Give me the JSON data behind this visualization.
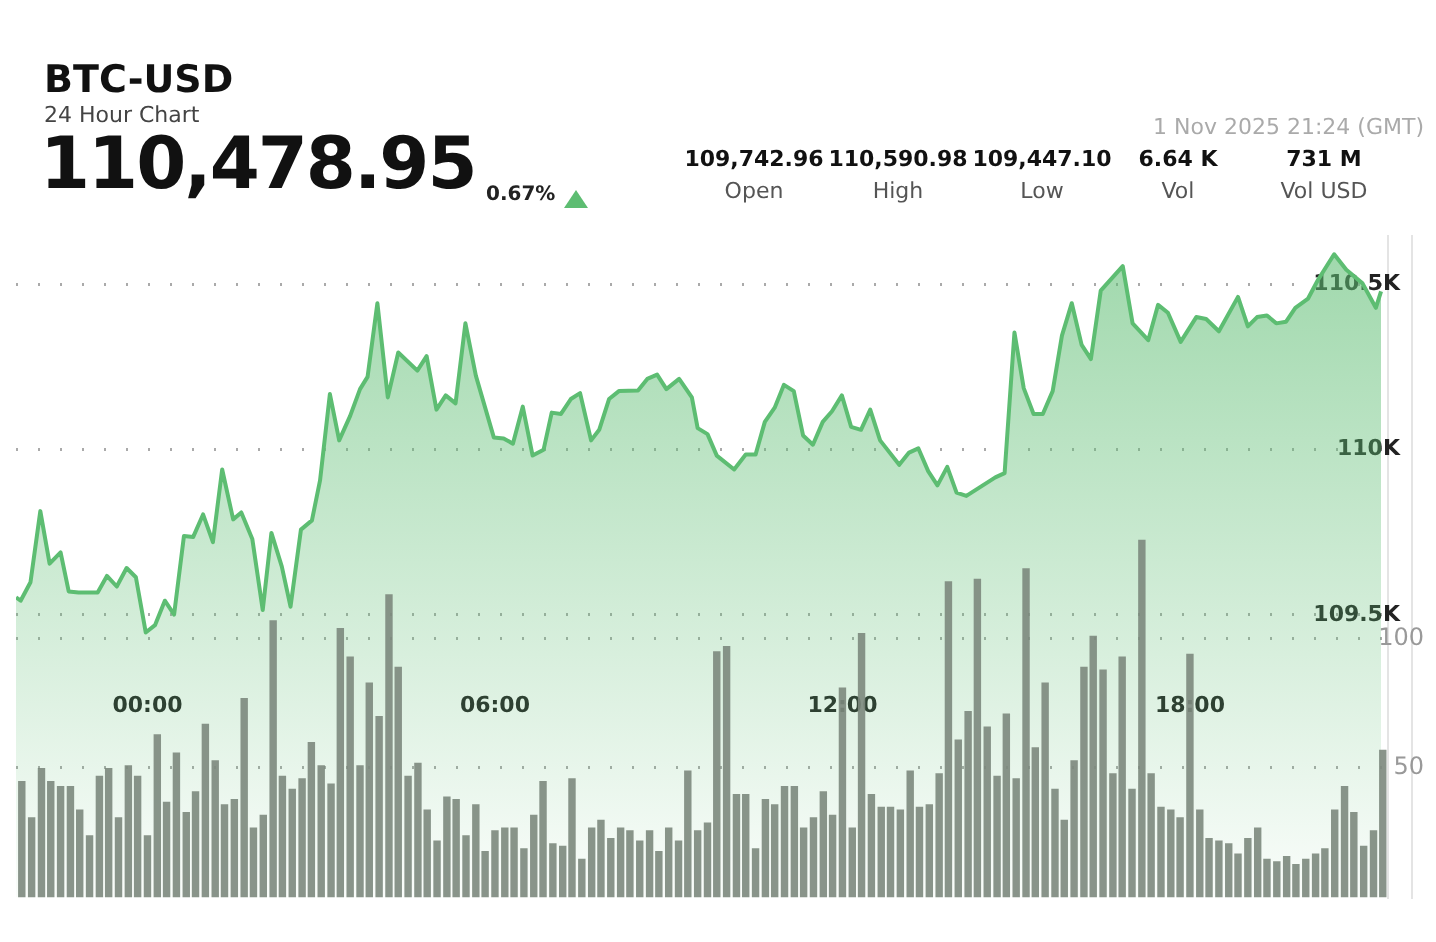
{
  "chart_data": {
    "type": "area",
    "title": "BTC-USD",
    "subtitle": "24 Hour Chart",
    "annotations": [
      "110,478.95",
      "0.67%",
      "109,742.96",
      "Open",
      "110,590.98",
      "High",
      "109,447.10",
      "Low",
      "6.64 K",
      "Vol",
      "731 M",
      "Vol USD",
      "1 Nov 2025 21:24 (GMT)"
    ],
    "xlim": [
      -2.27,
      21.42
    ],
    "xticks": [
      {
        "value": 0,
        "label": "00:00"
      },
      {
        "value": 6,
        "label": "06:00"
      },
      {
        "value": 12,
        "label": "12:00"
      },
      {
        "value": 18,
        "label": "18:00"
      }
    ],
    "ylim": [
      108645,
      110645
    ],
    "yticks": [
      {
        "value": 109500,
        "label": "109.5K"
      },
      {
        "value": 110000,
        "label": "110K"
      },
      {
        "value": 110500,
        "label": "110.5K"
      }
    ],
    "y2lim": [
      0,
      255
    ],
    "y2ticks": [
      50,
      100
    ],
    "grid": "y",
    "series": [
      {
        "color": "#5dbd72",
        "x": [
          -2.27,
          -2.19,
          -2.02,
          -1.85,
          -1.69,
          -1.5,
          -1.36,
          -1.19,
          -0.86,
          -0.7,
          -0.53,
          -0.36,
          -0.2,
          -0.03,
          0.13,
          0.3,
          0.46,
          0.63,
          0.79,
          0.96,
          1.13,
          1.29,
          1.48,
          1.62,
          1.81,
          1.99,
          2.14,
          2.32,
          2.47,
          2.65,
          2.84,
          2.98,
          3.15,
          3.31,
          3.5,
          3.67,
          3.8,
          3.97,
          4.15,
          4.33,
          4.66,
          4.82,
          4.99,
          5.15,
          5.32,
          5.49,
          5.67,
          5.98,
          6.15,
          6.31,
          6.48,
          6.65,
          6.84,
          6.98,
          7.14,
          7.31,
          7.47,
          7.66,
          7.8,
          7.97,
          8.14,
          8.47,
          8.63,
          8.8,
          8.96,
          9.18,
          9.4,
          9.5,
          9.67,
          9.83,
          10.13,
          10.33,
          10.5,
          10.66,
          10.83,
          10.99,
          11.16,
          11.32,
          11.49,
          11.66,
          11.82,
          11.99,
          12.15,
          12.32,
          12.48,
          12.65,
          12.98,
          13.15,
          13.31,
          13.48,
          13.64,
          13.81,
          13.97,
          14.14,
          14.64,
          14.8,
          14.97,
          15.13,
          15.3,
          15.46,
          15.63,
          15.79,
          15.96,
          16.13,
          16.29,
          16.46,
          16.84,
          17.01,
          17.28,
          17.45,
          17.62,
          17.84,
          18.11,
          18.28,
          18.5,
          18.83,
          19,
          19.16,
          19.33,
          19.49,
          19.66,
          19.82,
          20.04,
          20.21,
          20.49,
          20.7,
          20.98,
          21.21,
          21.3
        ],
        "values": [
          109553,
          109543,
          109599,
          109814,
          109655,
          109689,
          109571,
          109568,
          109568,
          109618,
          109586,
          109642,
          109614,
          109447,
          109469,
          109543,
          109501,
          109739,
          109736,
          109804,
          109720,
          109940,
          109789,
          109810,
          109730,
          109515,
          109748,
          109646,
          109525,
          109758,
          109786,
          109907,
          110168,
          110028,
          110102,
          110183,
          110220,
          110443,
          110158,
          110294,
          110239,
          110283,
          110121,
          110164,
          110140,
          110382,
          110224,
          110037,
          110034,
          110018,
          110130,
          109982,
          110000,
          110112,
          110108,
          110153,
          110171,
          110028,
          110060,
          110153,
          110177,
          110179,
          110214,
          110227,
          110183,
          110214,
          110158,
          110065,
          110047,
          109982,
          109940,
          109985,
          109985,
          110084,
          110127,
          110196,
          110177,
          110043,
          110015,
          110084,
          110116,
          110164,
          110069,
          110060,
          110121,
          110028,
          109954,
          109991,
          110004,
          109935,
          109892,
          109948,
          109870,
          109860,
          109916,
          109929,
          110354,
          110186,
          110108,
          110108,
          110177,
          110345,
          110443,
          110317,
          110274,
          110481,
          110555,
          110382,
          110331,
          110438,
          110414,
          110326,
          110401,
          110395,
          110358,
          110462,
          110373,
          110401,
          110406,
          110382,
          110387,
          110429,
          110457,
          110513,
          110591,
          110544,
          110503,
          110429,
          110479
        ]
      },
      {
        "type": "bar",
        "axis": "y2",
        "color": "#7c887d",
        "x": [
          -2.17,
          -2,
          -1.83,
          -1.67,
          -1.5,
          -1.33,
          -1.17,
          -1,
          -0.83,
          -0.67,
          -0.5,
          -0.33,
          -0.17,
          0,
          0.17,
          0.33,
          0.5,
          0.67,
          0.83,
          1,
          1.17,
          1.33,
          1.5,
          1.67,
          1.83,
          2,
          2.17,
          2.33,
          2.5,
          2.67,
          2.83,
          3,
          3.17,
          3.33,
          3.5,
          3.67,
          3.83,
          4,
          4.17,
          4.33,
          4.5,
          4.67,
          4.83,
          5,
          5.17,
          5.33,
          5.5,
          5.67,
          5.83,
          6,
          6.17,
          6.33,
          6.5,
          6.67,
          6.83,
          7,
          7.17,
          7.33,
          7.5,
          7.67,
          7.83,
          8,
          8.17,
          8.33,
          8.5,
          8.67,
          8.83,
          9,
          9.17,
          9.33,
          9.5,
          9.67,
          9.83,
          10,
          10.17,
          10.33,
          10.5,
          10.67,
          10.83,
          11,
          11.17,
          11.33,
          11.5,
          11.67,
          11.83,
          12,
          12.17,
          12.33,
          12.5,
          12.67,
          12.83,
          13,
          13.17,
          13.33,
          13.5,
          13.67,
          13.83,
          14,
          14.17,
          14.33,
          14.5,
          14.67,
          14.83,
          15,
          15.17,
          15.33,
          15.5,
          15.67,
          15.83,
          16,
          16.17,
          16.33,
          16.5,
          16.67,
          16.83,
          17,
          17.17,
          17.33,
          17.5,
          17.67,
          17.83,
          18,
          18.17,
          18.33,
          18.5,
          18.67,
          18.83,
          19,
          19.17,
          19.33,
          19.5,
          19.67,
          19.83,
          20,
          20.17,
          20.33,
          20.5,
          20.67,
          20.83,
          21,
          21.17,
          21.33
        ],
        "values": [
          45,
          31,
          50,
          45,
          43,
          43,
          34,
          24,
          47,
          50,
          31,
          51,
          47,
          24,
          63,
          37,
          56,
          33,
          41,
          67,
          53,
          36,
          38,
          77,
          27,
          32,
          107,
          47,
          42,
          46,
          60,
          51,
          44,
          104,
          93,
          51,
          83,
          70,
          117,
          89,
          47,
          52,
          34,
          22,
          39,
          38,
          24,
          36,
          18,
          26,
          27,
          27,
          19,
          32,
          45,
          21,
          20,
          46,
          15,
          27,
          30,
          23,
          27,
          26,
          22,
          26,
          18,
          27,
          22,
          49,
          26,
          29,
          95,
          97,
          40,
          40,
          19,
          38,
          36,
          43,
          43,
          27,
          31,
          41,
          32,
          81,
          27,
          102,
          40,
          35,
          35,
          34,
          49,
          35,
          36,
          48,
          122,
          61,
          72,
          123,
          66,
          47,
          71,
          46,
          127,
          58,
          83,
          42,
          30,
          53,
          89,
          101,
          88,
          48,
          93,
          42,
          138,
          48,
          35,
          34,
          31,
          94,
          34,
          23,
          22,
          21,
          17,
          23,
          27,
          15,
          14,
          16,
          13,
          15,
          17,
          19,
          34,
          43,
          33,
          20,
          26,
          57
        ]
      }
    ]
  }
}
